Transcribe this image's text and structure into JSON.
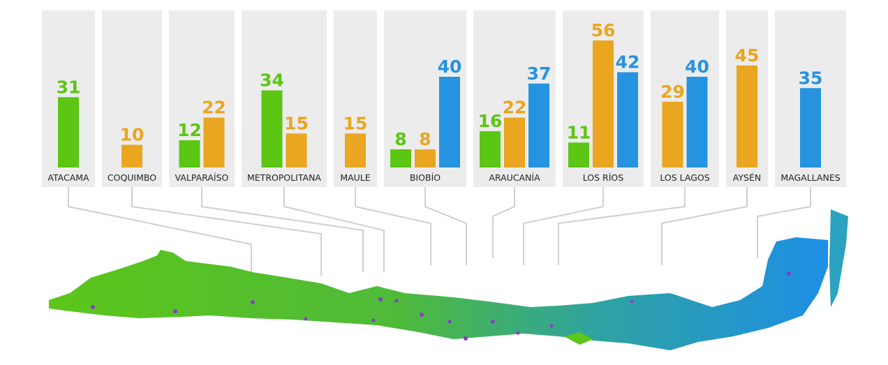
{
  "chart_data": {
    "type": "bar",
    "categories": [
      "ATACAMA",
      "COQUIMBO",
      "VALPARAÍSO",
      "METROPOLITANA",
      "MAULE",
      "BIOBÍO",
      "ARAUCANÍA",
      "LOS RÍOS",
      "LOS LAGOS",
      "AYSÉN",
      "MAGALLANES"
    ],
    "series": [
      {
        "color": "#5cc614",
        "values": [
          31,
          null,
          12,
          34,
          null,
          8,
          16,
          11,
          null,
          null,
          null
        ]
      },
      {
        "color": "#eaa620",
        "values": [
          null,
          10,
          22,
          15,
          15,
          8,
          22,
          56,
          29,
          45,
          null
        ]
      },
      {
        "color": "#2593e0",
        "values": [
          null,
          null,
          null,
          null,
          null,
          40,
          37,
          42,
          40,
          null,
          35
        ]
      }
    ]
  }
}
